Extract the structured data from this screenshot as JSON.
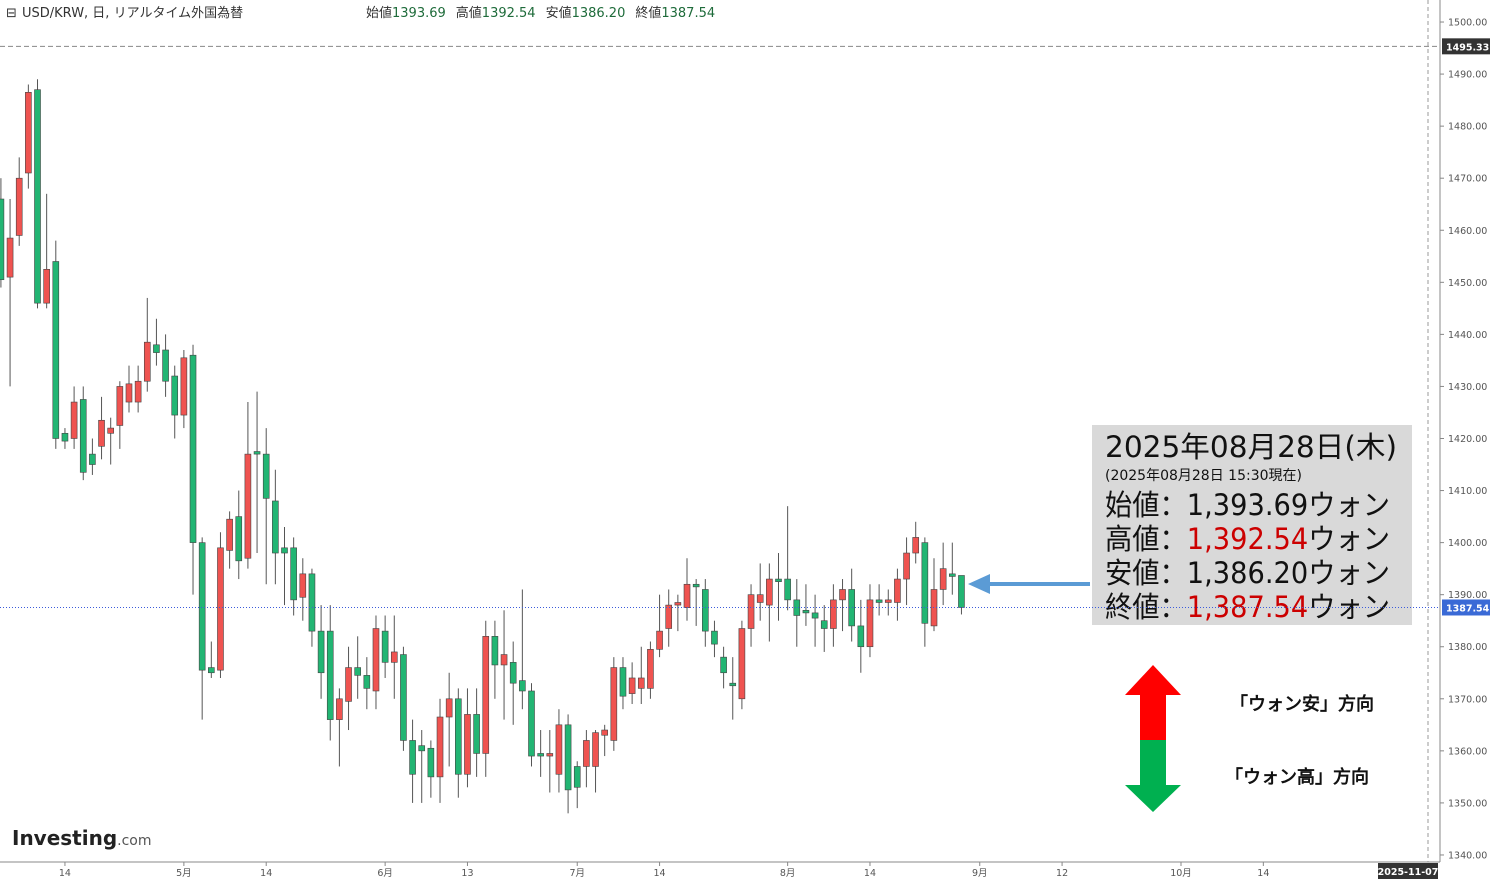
{
  "header": {
    "symbol": "USD/KRW, 日, リアルタイム外国為替",
    "ohlc_labels": [
      "始値",
      "高値",
      "安値",
      "終値"
    ],
    "ohlc_values": [
      "1393.69",
      "1392.54",
      "1386.20",
      "1387.54"
    ]
  },
  "brand": {
    "name": "Investing",
    "suffix": ".com"
  },
  "annotation": {
    "title": "2025年08月28日(木)",
    "subtitle": "(2025年08月28日 15:30現在)",
    "rows": [
      {
        "label": "始値：",
        "value": "1,393.69",
        "unit": "ウォン",
        "color": "#111111"
      },
      {
        "label": "高値：",
        "value": "1,392.54",
        "unit": "ウォン",
        "color": "#cc0000"
      },
      {
        "label": "安値：",
        "value": "1,386.20",
        "unit": "ウォン",
        "color": "#111111"
      },
      {
        "label": "終値：",
        "value": "1,387.54",
        "unit": "ウォン",
        "color": "#cc0000"
      }
    ],
    "up_label": "「ウォン安」方向",
    "down_label": "「ウォン高」方向"
  },
  "chart_data": {
    "type": "candlestick",
    "up_color": "#ef5350",
    "down_color": "#22b573",
    "open": [
      1466,
      1451,
      1459,
      1471,
      1487,
      1446,
      1454,
      1421,
      1420,
      1427.5,
      1417,
      1418.5,
      1421,
      1422.5,
      1427,
      1427,
      1431,
      1438,
      1437,
      1432,
      1424.5,
      1436,
      1400,
      1376,
      1375.5,
      1398.5,
      1405,
      1397,
      1417.5,
      1417,
      1408,
      1399,
      1399,
      1389.5,
      1394,
      1383,
      1383,
      1366,
      1369.5,
      1376,
      1374.5,
      1371.5,
      1383,
      1377,
      1378.5,
      1362,
      1361,
      1360.5,
      1355,
      1366.5,
      1370,
      1355.5,
      1367,
      1359.5,
      1382,
      1376.5,
      1377,
      1373.5,
      1371.5,
      1359.5,
      1359,
      1355.5,
      1365,
      1357,
      1357,
      1357,
      1363,
      1362,
      1376,
      1371,
      1372,
      1372,
      1379.5,
      1383.5,
      1388,
      1387.5,
      1392,
      1391,
      1383,
      1378,
      1373,
      1370,
      1383.5,
      1388.5,
      1388,
      1393,
      1393,
      1389,
      1387,
      1386.5,
      1385,
      1383.5,
      1389,
      1391,
      1384,
      1380,
      1389,
      1388.5,
      1388.5,
      1393,
      1398,
      1400,
      1384,
      1391,
      1394,
      1393.69
    ],
    "high": [
      1470,
      1466,
      1474,
      1488,
      1489,
      1467,
      1458,
      1422,
      1430,
      1430,
      1420,
      1428,
      1424,
      1431,
      1434,
      1434,
      1447,
      1443,
      1440,
      1434,
      1437,
      1438,
      1401,
      1381,
      1402,
      1406,
      1410,
      1427,
      1429,
      1422,
      1414,
      1403,
      1401,
      1397,
      1395,
      1388,
      1388,
      1372,
      1380,
      1382,
      1378,
      1386,
      1386,
      1386,
      1380,
      1366,
      1364,
      1362,
      1370,
      1375,
      1372,
      1372,
      1372,
      1385,
      1385,
      1387,
      1381,
      1391,
      1373,
      1364,
      1364,
      1368,
      1367,
      1358,
      1364,
      1364,
      1365,
      1378,
      1378,
      1377,
      1380,
      1381,
      1390,
      1391,
      1390,
      1397,
      1393,
      1393,
      1385,
      1380,
      1378,
      1385,
      1392,
      1396,
      1396,
      1398,
      1407,
      1393,
      1392,
      1390,
      1388,
      1392,
      1393,
      1395,
      1389,
      1392,
      1392,
      1391,
      1395,
      1401,
      1404,
      1401,
      1397,
      1400,
      1400,
      1392.54
    ],
    "low": [
      1449,
      1430,
      1457,
      1468,
      1445,
      1445,
      1418,
      1418,
      1418,
      1412,
      1413,
      1416,
      1415,
      1418,
      1425,
      1425,
      1429,
      1434,
      1428,
      1420,
      1422,
      1390,
      1366,
      1374,
      1374,
      1395,
      1393,
      1395,
      1398,
      1392,
      1392,
      1388,
      1386,
      1385,
      1380,
      1370,
      1362,
      1357,
      1364,
      1370,
      1368,
      1368,
      1374,
      1370,
      1360,
      1350,
      1350,
      1351,
      1350,
      1357,
      1351,
      1353,
      1355,
      1355,
      1370,
      1366,
      1365,
      1368,
      1357,
      1355,
      1352,
      1352,
      1348,
      1349,
      1353,
      1352,
      1359,
      1360,
      1368,
      1369,
      1369,
      1370,
      1378,
      1380,
      1383,
      1385,
      1384,
      1380,
      1378,
      1372,
      1366,
      1368,
      1380,
      1385,
      1381,
      1385,
      1387,
      1380,
      1384,
      1380,
      1379,
      1380,
      1383,
      1381,
      1375,
      1378,
      1386,
      1386,
      1385,
      1388,
      1396,
      1380,
      1383,
      1388,
      1390,
      1386.2
    ],
    "close": [
      1450.5,
      1458.5,
      1470,
      1486.5,
      1446,
      1452.5,
      1420,
      1419.5,
      1427,
      1413.5,
      1415,
      1423.5,
      1422,
      1430,
      1430.5,
      1431,
      1438.5,
      1436.5,
      1431,
      1424.5,
      1435.5,
      1400,
      1375.5,
      1375,
      1399,
      1404.5,
      1396.5,
      1417,
      1417,
      1408.5,
      1398,
      1398,
      1389,
      1394,
      1383,
      1375,
      1366,
      1370,
      1376,
      1374.5,
      1372,
      1383.5,
      1377,
      1379,
      1362,
      1355.5,
      1360,
      1355,
      1366.5,
      1370,
      1355.5,
      1367,
      1359.5,
      1382,
      1376.5,
      1378.5,
      1373,
      1371.5,
      1359,
      1359,
      1359.5,
      1365,
      1352.5,
      1353,
      1362,
      1363.5,
      1364,
      1376,
      1370.5,
      1374,
      1374,
      1379.5,
      1383,
      1388,
      1388.5,
      1392,
      1391.5,
      1383,
      1380.5,
      1375,
      1372.5,
      1383.5,
      1390,
      1390,
      1393,
      1392.5,
      1389,
      1386,
      1386.5,
      1385.5,
      1383.5,
      1389,
      1391,
      1384,
      1380,
      1389,
      1388.5,
      1389,
      1393,
      1398,
      1401,
      1384.5,
      1391,
      1395,
      1393.5,
      1387.54
    ],
    "xlim": [
      -0.1,
      156
    ],
    "xticks": [
      {
        "value": 7,
        "label": "14"
      },
      {
        "value": 20,
        "label": "5月"
      },
      {
        "value": 29,
        "label": "14"
      },
      {
        "value": 42,
        "label": "6月"
      },
      {
        "value": 51,
        "label": "13"
      },
      {
        "value": 63,
        "label": "7月"
      },
      {
        "value": 72,
        "label": "14"
      },
      {
        "value": 86,
        "label": "8月"
      },
      {
        "value": 95,
        "label": "14"
      },
      {
        "value": 107,
        "label": "9月"
      },
      {
        "value": 116,
        "label": "12"
      },
      {
        "value": 129,
        "label": "10月"
      },
      {
        "value": 138,
        "label": "14"
      }
    ],
    "x_cursor": {
      "value": 156,
      "label": "2025-11-07"
    },
    "ylim": [
      1338.65,
      1504.23
    ],
    "yticks": [
      {
        "value": 1340,
        "label": "1340.00"
      },
      {
        "value": 1350,
        "label": "1350.00"
      },
      {
        "value": 1360,
        "label": "1360.00"
      },
      {
        "value": 1370,
        "label": "1370.00"
      },
      {
        "value": 1380,
        "label": "1380.00"
      },
      {
        "value": 1390,
        "label": "1390.00"
      },
      {
        "value": 1400,
        "label": "1400.00"
      },
      {
        "value": 1410,
        "label": "1410.00"
      },
      {
        "value": 1420,
        "label": "1420.00"
      },
      {
        "value": 1430,
        "label": "1430.00"
      },
      {
        "value": 1440,
        "label": "1440.00"
      },
      {
        "value": 1450,
        "label": "1450.00"
      },
      {
        "value": 1460,
        "label": "1460.00"
      },
      {
        "value": 1470,
        "label": "1470.00"
      },
      {
        "value": 1480,
        "label": "1480.00"
      },
      {
        "value": 1490,
        "label": "1490.00"
      },
      {
        "value": 1500,
        "label": "1500.00"
      }
    ],
    "hline": 1495.33
  }
}
